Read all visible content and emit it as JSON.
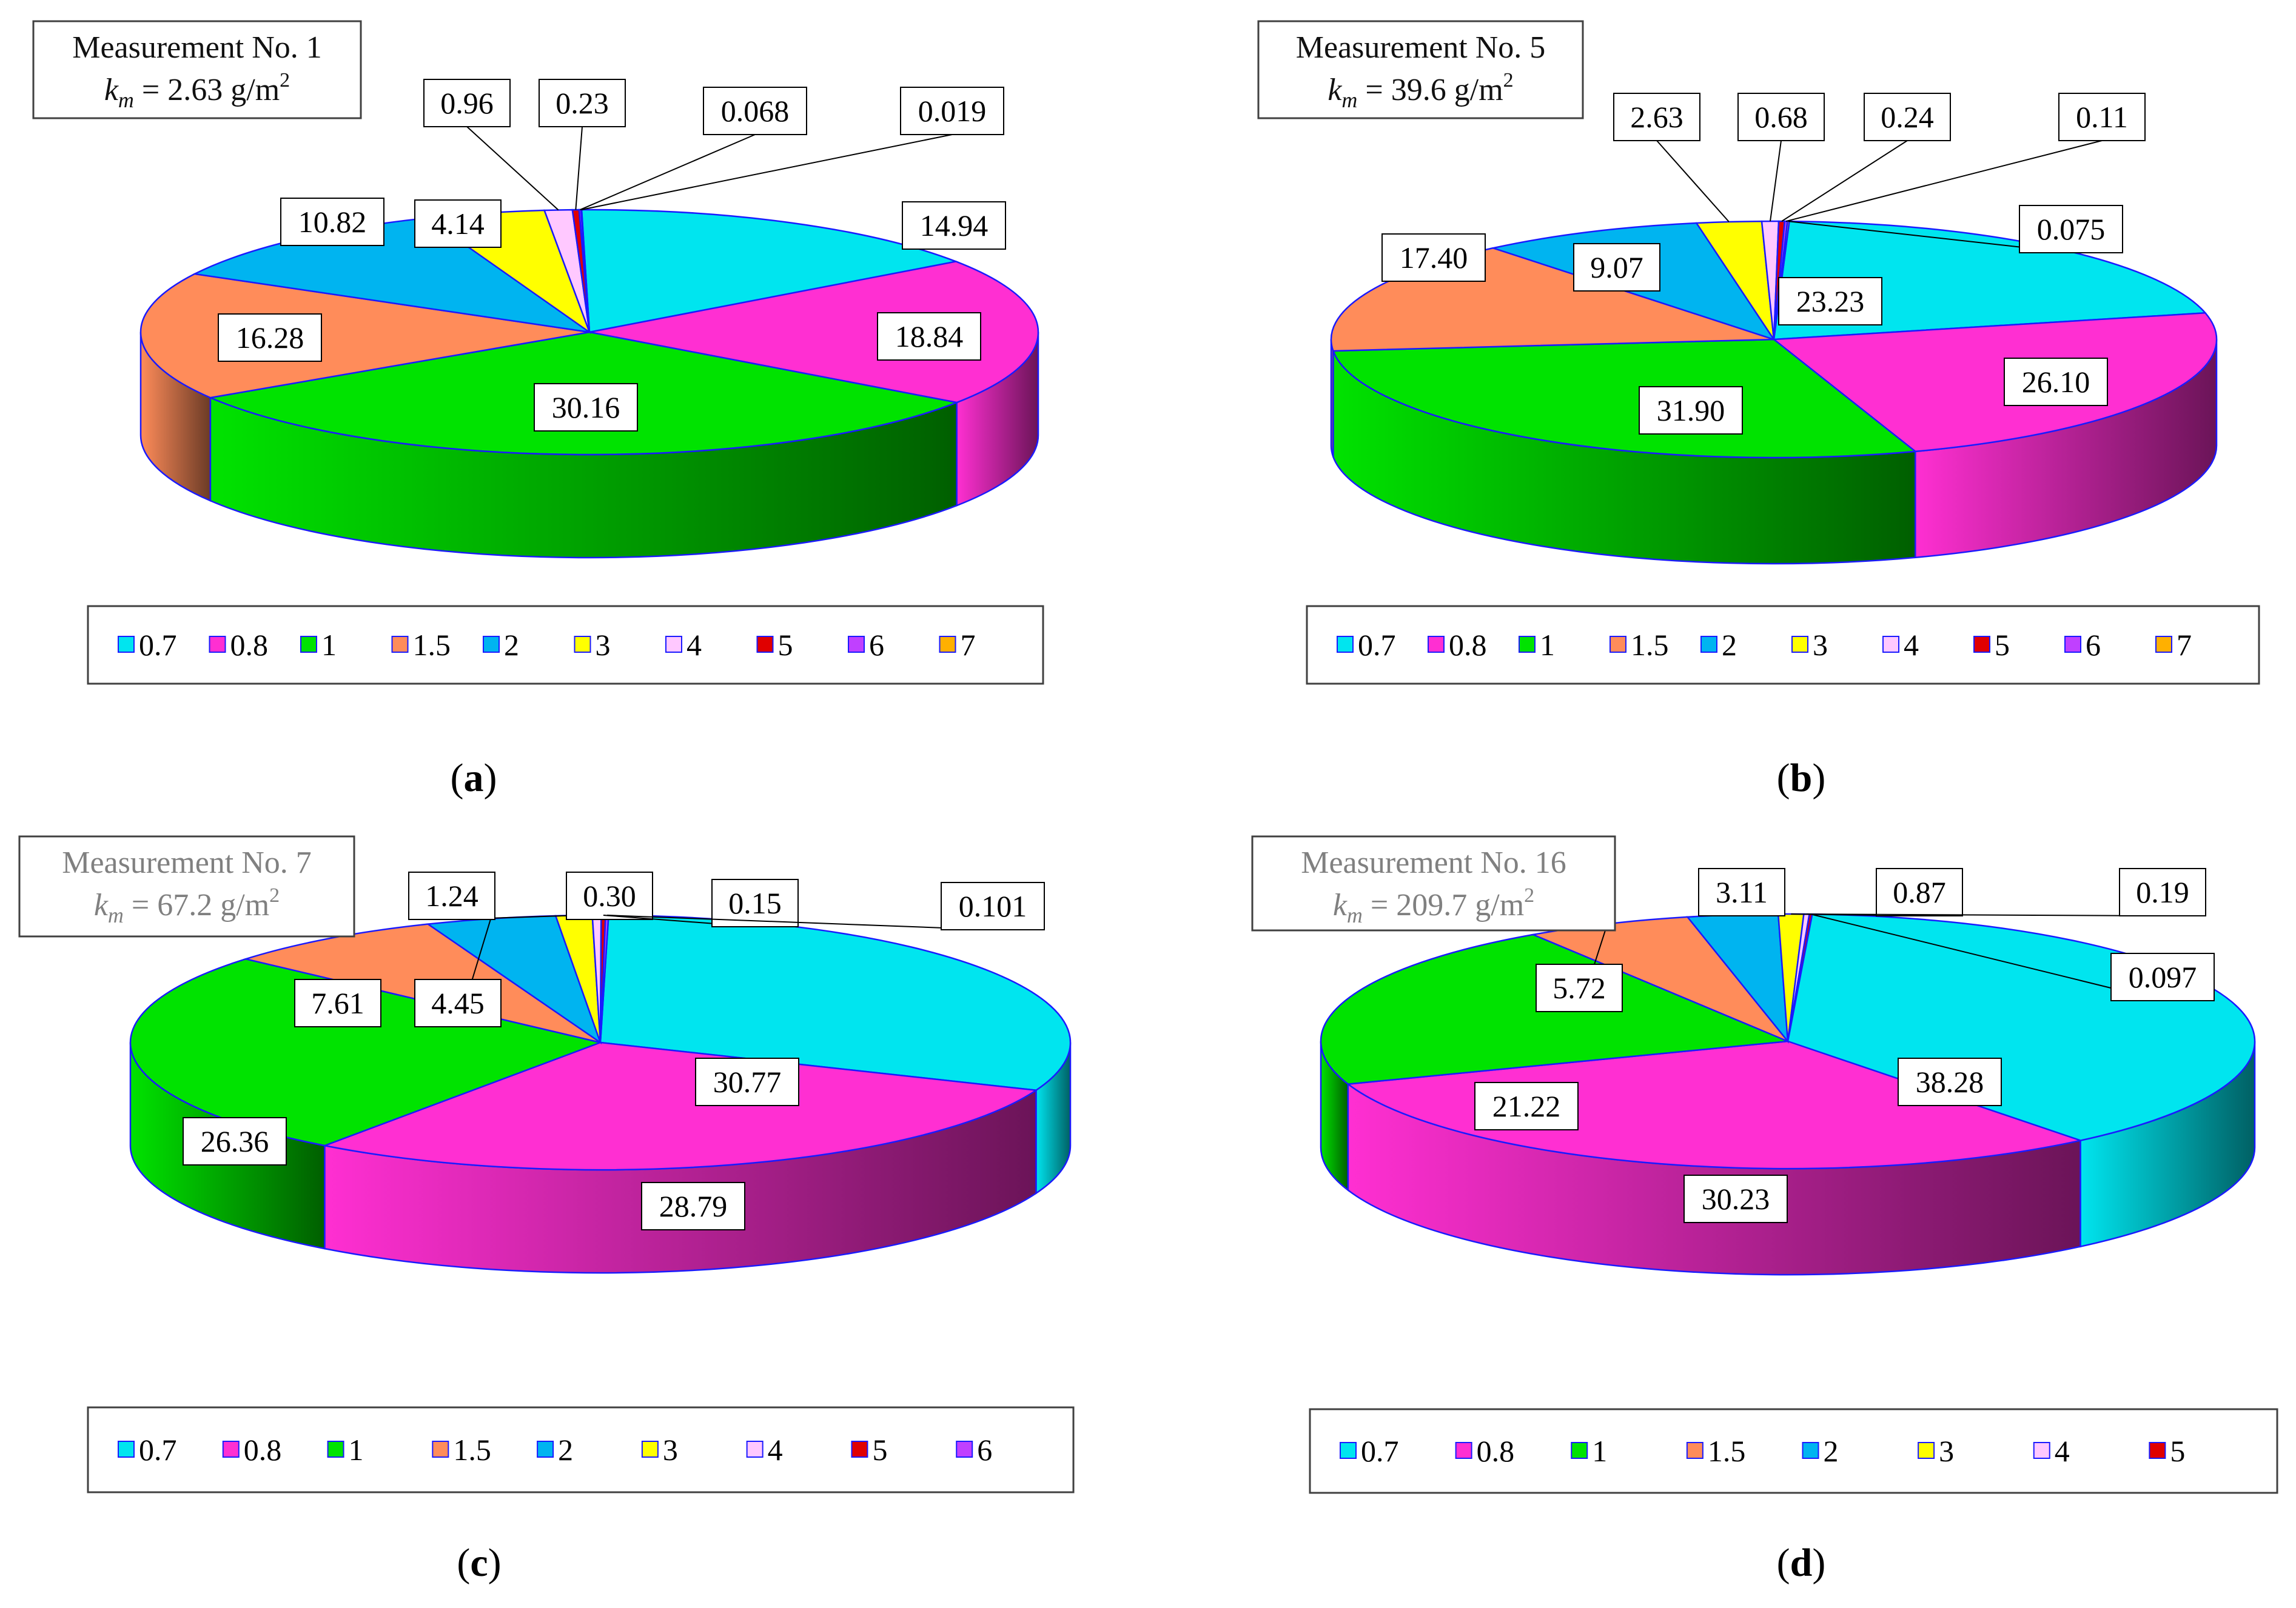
{
  "chart_data": [
    {
      "type": "pie",
      "panel_label": "a",
      "info_title": "Measurement No. 1",
      "info_km_symbol": "k",
      "info_km_sub": "m",
      "info_km_value": " = 2.63 g/m",
      "info_km_sup": "2",
      "categories": [
        "0.7",
        "0.8",
        "1",
        "1.5",
        "2",
        "3",
        "4",
        "5",
        "6",
        "7"
      ],
      "values": [
        14.94,
        18.84,
        30.16,
        16.28,
        10.82,
        4.14,
        0.96,
        0.23,
        0.068,
        0.019
      ],
      "data_labels": [
        "14.94",
        "18.84",
        "30.16",
        "16.28",
        "10.82",
        "4.14",
        "0.96",
        "0.23",
        "0.068",
        "0.019"
      ],
      "legend": [
        "0.7",
        "0.8",
        "1",
        "1.5",
        "2",
        "3",
        "4",
        "5",
        "6",
        "7"
      ],
      "legend_placement": "bottom"
    },
    {
      "type": "pie",
      "panel_label": "b",
      "info_title": "Measurement No. 5",
      "info_km_symbol": "k",
      "info_km_sub": "m",
      "info_km_value": " = 39.6 g/m",
      "info_km_sup": "2",
      "categories": [
        "0.7",
        "0.8",
        "1",
        "1.5",
        "2",
        "3",
        "4",
        "5",
        "6",
        "7"
      ],
      "values": [
        23.23,
        26.1,
        31.9,
        17.4,
        9.07,
        2.63,
        0.68,
        0.24,
        0.11,
        0.075
      ],
      "data_labels": [
        "23.23",
        "26.10",
        "31.90",
        "17.40",
        "9.07",
        "2.63",
        "0.68",
        "0.24",
        "0.11",
        "0.075"
      ],
      "legend": [
        "0.7",
        "0.8",
        "1",
        "1.5",
        "2",
        "3",
        "4",
        "5",
        "6",
        "7"
      ],
      "legend_placement": "bottom"
    },
    {
      "type": "pie",
      "panel_label": "c",
      "info_title": "Measurement No. 7",
      "info_km_symbol": "k",
      "info_km_sub": "m",
      "info_km_value": " = 67.2 g/m",
      "info_km_sup": "2",
      "categories": [
        "0.7",
        "0.8",
        "1",
        "1.5",
        "2",
        "3",
        "4",
        "5",
        "6"
      ],
      "values": [
        30.77,
        28.79,
        26.36,
        7.61,
        4.45,
        1.24,
        0.3,
        0.15,
        0.101
      ],
      "data_labels": [
        "30.77",
        "28.79",
        "26.36",
        "7.61",
        "4.45",
        "1.24",
        "0.30",
        "0.15",
        "0.101"
      ],
      "legend": [
        "0.7",
        "0.8",
        "1",
        "1.5",
        "2",
        "3",
        "4",
        "5",
        "6"
      ],
      "legend_placement": "bottom"
    },
    {
      "type": "pie",
      "panel_label": "d",
      "info_title": "Measurement No. 16",
      "info_km_symbol": "k",
      "info_km_sub": "m",
      "info_km_value": " = 209.7 g/m",
      "info_km_sup": "2",
      "categories": [
        "0.7",
        "0.8",
        "1",
        "1.5",
        "2",
        "3",
        "4",
        "5"
      ],
      "values": [
        38.28,
        30.23,
        21.22,
        5.72,
        3.11,
        0.87,
        0.19,
        0.097
      ],
      "data_labels": [
        "38.28",
        "30.23",
        "21.22",
        "5.72",
        "3.11",
        "0.87",
        "0.19",
        "0.097"
      ],
      "legend": [
        "0.7",
        "0.8",
        "1",
        "1.5",
        "2",
        "3",
        "4",
        "5"
      ],
      "legend_placement": "bottom"
    }
  ],
  "colors": {
    "0.7": "#00e5ef",
    "0.8": "#ff2fd2",
    "1": "#00e300",
    "1.5": "#ff8c5a",
    "2": "#00b4f0",
    "3": "#ffff00",
    "4": "#ffc8ff",
    "5": "#e00000",
    "6": "#c040ff",
    "7": "#ffb000",
    "outline": "#1a1aff",
    "frame": "#404040",
    "info_text_dark": "#111111",
    "info_text_grey": "#808080"
  }
}
